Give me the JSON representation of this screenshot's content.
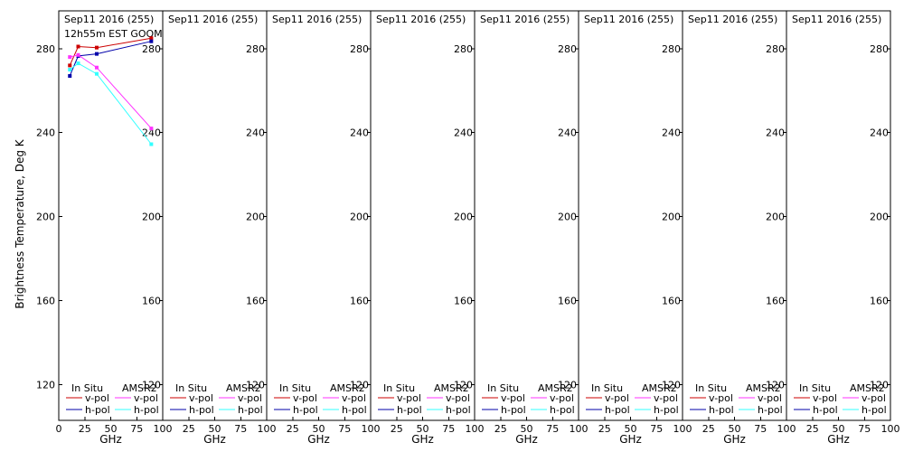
{
  "ylabel": "Brightness Temperature, Deg K",
  "xlabel": "GHz",
  "legend": {
    "in_situ": "In Situ",
    "amsr2": "AMSR2",
    "vpol": "v-pol",
    "hpol": "h-pol"
  },
  "colors": {
    "insitu_v": "#cc0000",
    "insitu_h": "#0000aa",
    "amsr2_v": "#ff33ff",
    "amsr2_h": "#33ffff"
  },
  "chart_data": {
    "type": "line",
    "xlim": [
      0,
      100
    ],
    "ylim": [
      103,
      298
    ],
    "xticks": [
      0,
      25,
      50,
      75,
      100
    ],
    "yticks": [
      120,
      160,
      200,
      240,
      280
    ],
    "panels": [
      {
        "title": "Sep11 2016 (255)",
        "subtitle": "12h55m EST GOOM",
        "series": [
          {
            "key": "insitu_v",
            "x": [
              10.65,
              18.7,
              36.5,
              89
            ],
            "y": [
              272,
              281,
              280.5,
              285
            ]
          },
          {
            "key": "insitu_h",
            "x": [
              10.65,
              18.7,
              36.5,
              89
            ],
            "y": [
              267,
              276.5,
              277.5,
              283.5
            ]
          },
          {
            "key": "amsr2_v",
            "x": [
              10.65,
              18.7,
              36.5,
              89
            ],
            "y": [
              276,
              277,
              271,
              242
            ]
          },
          {
            "key": "amsr2_h",
            "x": [
              10.65,
              18.7,
              36.5,
              89
            ],
            "y": [
              270,
              273,
              268,
              234.5
            ]
          }
        ]
      },
      {
        "title": "Sep11 2016 (255)",
        "series": []
      },
      {
        "title": "Sep11 2016 (255)",
        "series": []
      },
      {
        "title": "Sep11 2016 (255)",
        "series": []
      },
      {
        "title": "Sep11 2016 (255)",
        "series": []
      },
      {
        "title": "Sep11 2016 (255)",
        "series": []
      },
      {
        "title": "Sep11 2016 (255)",
        "series": []
      },
      {
        "title": "Sep11 2016 (255)",
        "series": []
      }
    ]
  }
}
